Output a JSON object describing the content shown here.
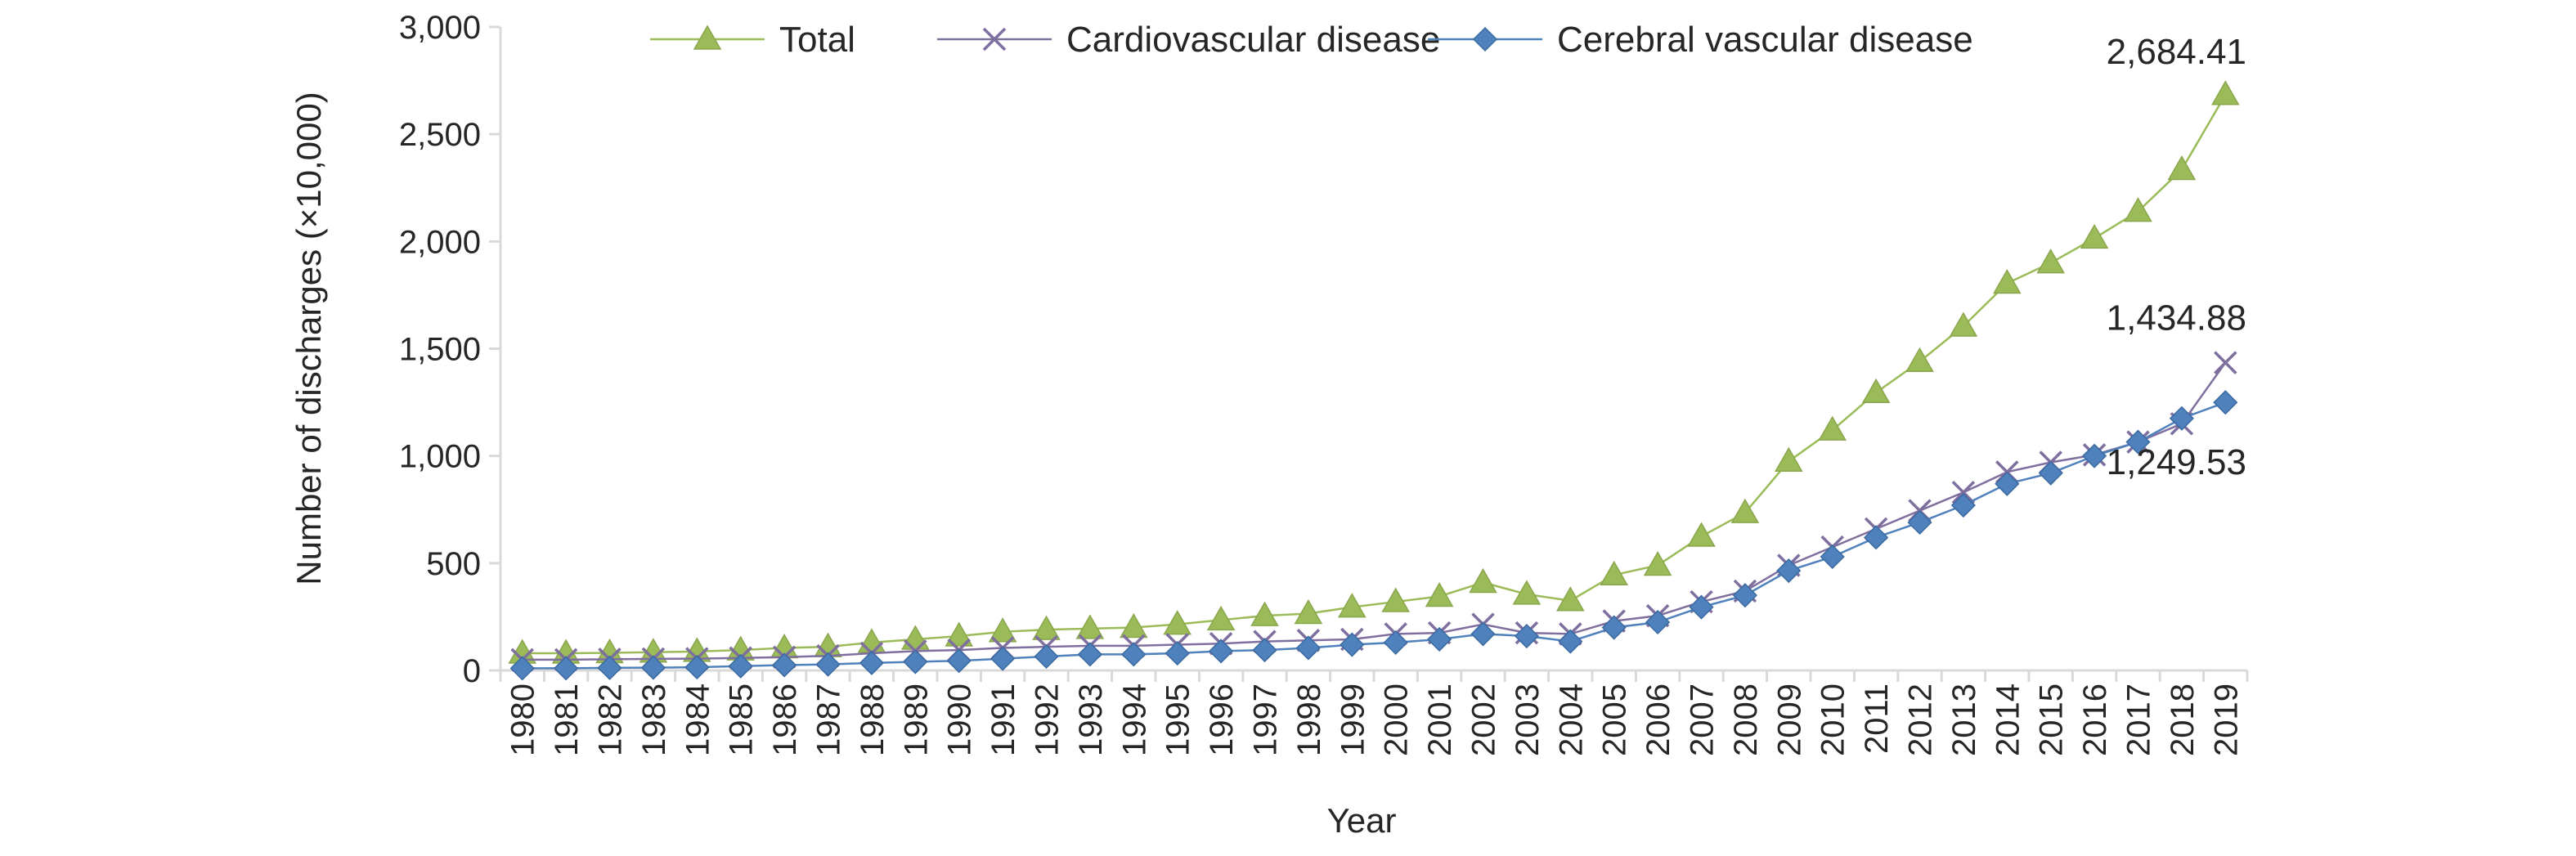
{
  "chart_data": {
    "type": "line",
    "xlabel": "Year",
    "ylabel": "Number of discharges (×10,000)",
    "ylim": [
      0,
      3000
    ],
    "yticks": [
      0,
      500,
      1000,
      1500,
      2000,
      2500,
      3000
    ],
    "ytick_labels": [
      "0",
      "500",
      "1,000",
      "1,500",
      "2,000",
      "2,500",
      "3,000"
    ],
    "grid": false,
    "legend_position": "top",
    "categories": [
      "1980",
      "1981",
      "1982",
      "1983",
      "1984",
      "1985",
      "1986",
      "1987",
      "1988",
      "1989",
      "1990",
      "1991",
      "1992",
      "1993",
      "1994",
      "1995",
      "1996",
      "1997",
      "1998",
      "1999",
      "2000",
      "2001",
      "2002",
      "2003",
      "2004",
      "2005",
      "2006",
      "2007",
      "2008",
      "2009",
      "2010",
      "2011",
      "2012",
      "2013",
      "2014",
      "2015",
      "2016",
      "2017",
      "2018",
      "2019"
    ],
    "series": [
      {
        "name": "Total",
        "color": "#9bbb59",
        "marker": "triangle",
        "values": [
          80,
          80,
          82,
          85,
          88,
          95,
          105,
          110,
          130,
          145,
          160,
          180,
          190,
          195,
          200,
          215,
          235,
          255,
          265,
          295,
          320,
          345,
          410,
          355,
          325,
          445,
          490,
          625,
          735,
          975,
          1120,
          1295,
          1440,
          1605,
          1805,
          1900,
          2015,
          2140,
          2335,
          2684.41
        ]
      },
      {
        "name": "Cardiovascular disease",
        "color": "#7f6f9f",
        "marker": "x",
        "values": [
          50,
          50,
          52,
          54,
          55,
          58,
          62,
          68,
          80,
          90,
          95,
          105,
          110,
          115,
          115,
          120,
          125,
          135,
          140,
          145,
          170,
          175,
          215,
          175,
          170,
          230,
          255,
          320,
          370,
          490,
          575,
          660,
          745,
          830,
          925,
          970,
          1005,
          1065,
          1150,
          1434.88
        ]
      },
      {
        "name": "Cerebral vascular disease",
        "color": "#4f81bd",
        "marker": "diamond",
        "values": [
          10,
          10,
          12,
          13,
          15,
          20,
          25,
          28,
          35,
          40,
          45,
          55,
          65,
          75,
          75,
          80,
          90,
          95,
          105,
          120,
          130,
          145,
          170,
          160,
          135,
          200,
          225,
          295,
          350,
          465,
          530,
          620,
          690,
          770,
          870,
          920,
          1000,
          1065,
          1175,
          1249.53
        ]
      }
    ],
    "annotations": [
      {
        "series": 0,
        "index": 39,
        "text": "2,684.41"
      },
      {
        "series": 1,
        "index": 39,
        "text": "1,434.88"
      },
      {
        "series": 2,
        "index": 39,
        "text": "1,249.53"
      }
    ]
  }
}
